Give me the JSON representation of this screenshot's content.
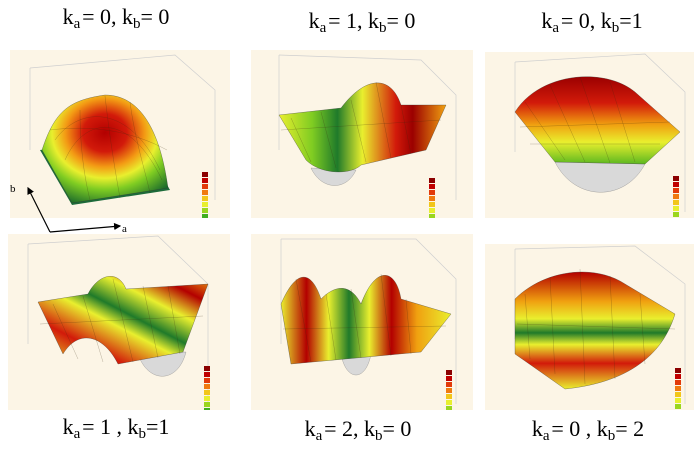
{
  "panels": [
    {
      "id": "p1",
      "label": {
        "a": "0",
        "b": "0"
      }
    },
    {
      "id": "p2",
      "label": {
        "a": "1",
        "b": "0"
      }
    },
    {
      "id": "p3",
      "label": {
        "a": "0",
        "b": "1"
      }
    },
    {
      "id": "p4",
      "label": {
        "a": "1",
        "b": "1"
      }
    },
    {
      "id": "p5",
      "label": {
        "a": "2",
        "b": "0"
      }
    },
    {
      "id": "p6",
      "label": {
        "a": "0",
        "b": "2"
      }
    }
  ],
  "axis_labels": {
    "a": "a",
    "b": "b"
  },
  "legend_colors": [
    "#8b0000",
    "#c00000",
    "#e23a0a",
    "#f07a10",
    "#f2c61a",
    "#e8ef2e",
    "#9ad61e",
    "#3fae20",
    "#1f7a2a"
  ]
}
